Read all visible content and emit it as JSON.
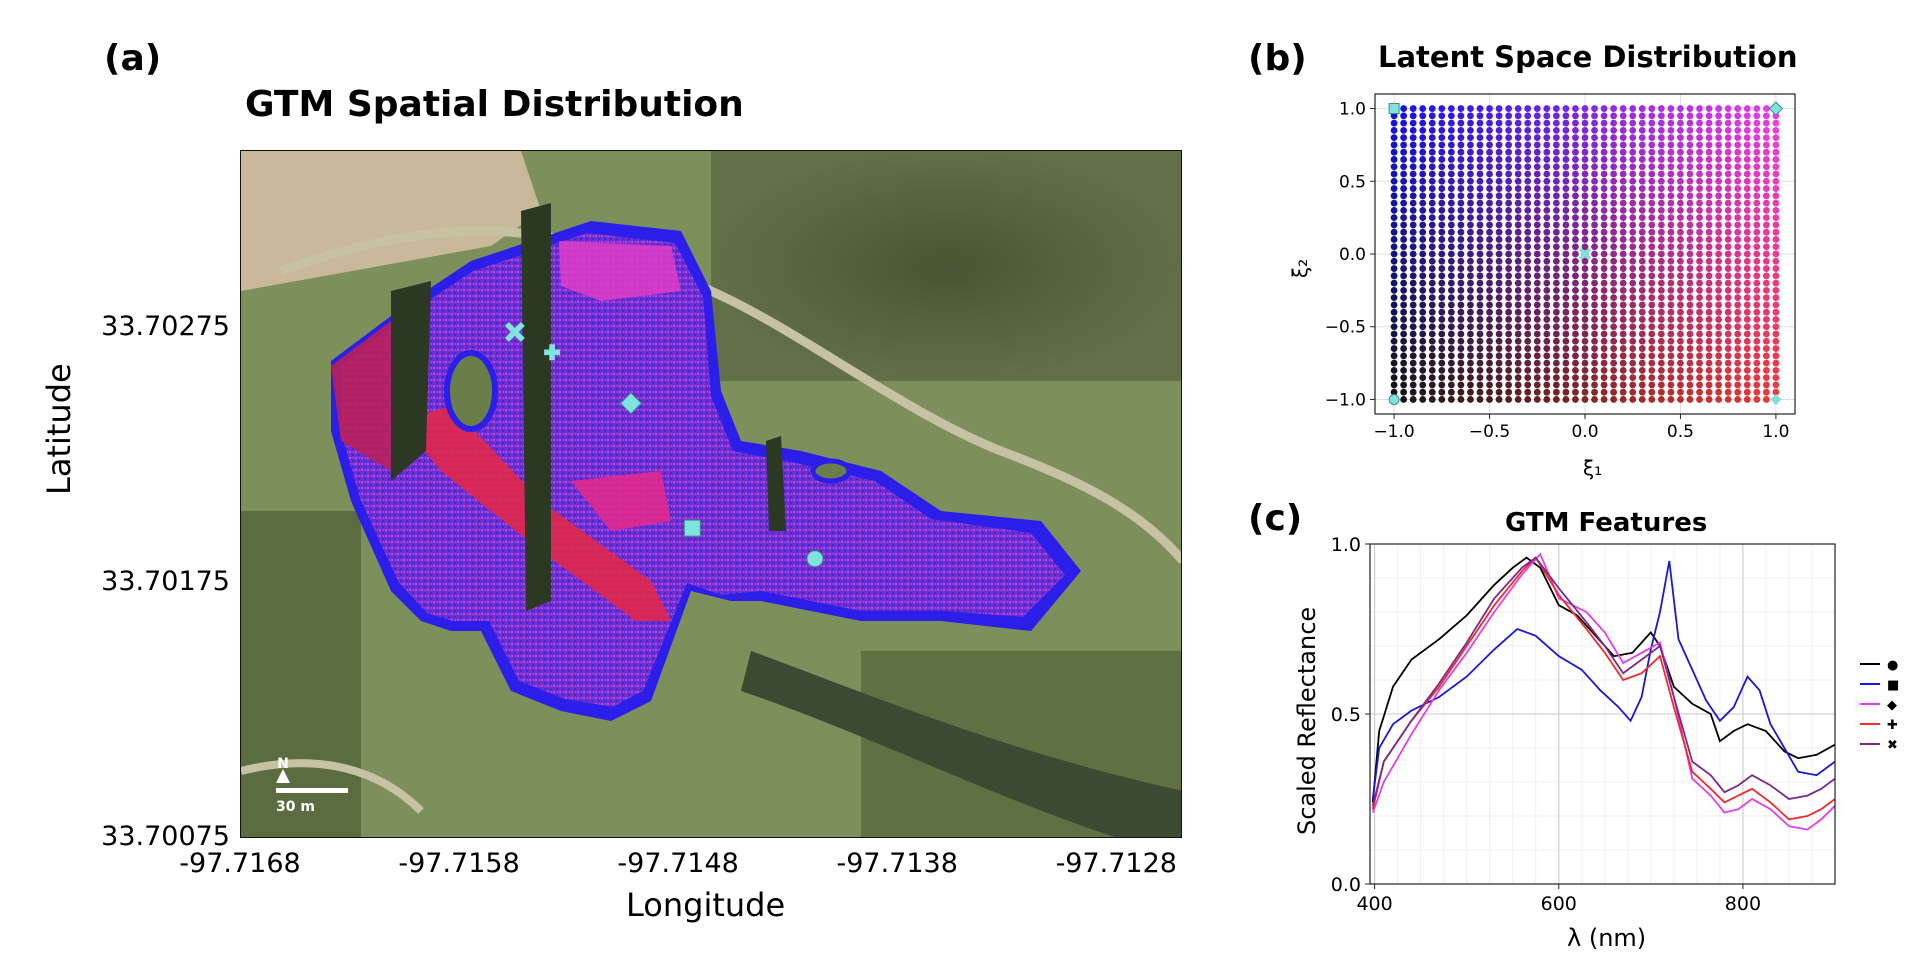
{
  "panel_a": {
    "label": "(a)",
    "title": "GTM Spatial Distribution",
    "xlabel": "Longitude",
    "ylabel": "Latitude",
    "xticks": [
      "-97.7168",
      "-97.7158",
      "-97.7148",
      "-97.7138",
      "-97.7128"
    ],
    "yticks": [
      "33.70275",
      "33.70175",
      "33.70075"
    ],
    "scalebar": {
      "north": "N",
      "label": "30 m"
    },
    "marker_color": "#7fe3de"
  },
  "panel_b": {
    "label": "(b)",
    "title": "Latent Space Distribution",
    "xlabel": "ξ₁",
    "ylabel": "ξ₂",
    "xticks": [
      "−1.0",
      "−0.5",
      "0.0",
      "0.5",
      "1.0"
    ],
    "yticks": [
      "1.0",
      "0.5",
      "0.0",
      "−0.5",
      "−1.0"
    ]
  },
  "panel_c": {
    "label": "(c)",
    "title": "GTM Features",
    "xlabel": "λ (nm)",
    "ylabel": "Scaled Reflectance",
    "xticks": [
      "400",
      "600",
      "800"
    ],
    "yticks": [
      "1.0",
      "0.5",
      "0.0"
    ]
  },
  "chart_data": [
    {
      "id": "a",
      "type": "heatmap",
      "title": "GTM Spatial Distribution",
      "xlabel": "Longitude",
      "ylabel": "Latitude",
      "xlim": [
        -97.7168,
        -97.7125
      ],
      "ylim": [
        33.70075,
        33.70345
      ],
      "markers": [
        {
          "symbol": "x",
          "lon": -97.71555,
          "lat": 33.70274
        },
        {
          "symbol": "plus",
          "lon": -97.71538,
          "lat": 33.70266
        },
        {
          "symbol": "diamond",
          "lon": -97.71502,
          "lat": 33.70246
        },
        {
          "symbol": "square",
          "lon": -97.71474,
          "lat": 33.70197
        },
        {
          "symbol": "circle",
          "lon": -97.71418,
          "lat": 33.70185
        }
      ]
    },
    {
      "id": "b",
      "type": "scatter",
      "title": "Latent Space Distribution",
      "xlabel": "ξ₁",
      "ylabel": "ξ₂",
      "xlim": [
        -1.1,
        1.1
      ],
      "ylim": [
        -1.1,
        1.1
      ],
      "grid": true,
      "point_grid": {
        "min": -1.0,
        "max": 1.0,
        "step": 0.05
      },
      "corner_colors": {
        "bottom_left": "#141414",
        "bottom_right": "#ef3838",
        "top_left": "#1212e8",
        "top_right": "#ee3ce6"
      },
      "markers": [
        {
          "symbol": "square",
          "x": -1.0,
          "y": 1.0
        },
        {
          "symbol": "diamond",
          "x": 1.0,
          "y": 1.0
        },
        {
          "symbol": "x",
          "x": 0.0,
          "y": 0.0
        },
        {
          "symbol": "circle",
          "x": -1.0,
          "y": -1.0
        },
        {
          "symbol": "plus",
          "x": 1.0,
          "y": -1.0
        }
      ]
    },
    {
      "id": "c",
      "type": "line",
      "title": "GTM Features",
      "xlabel": "λ (nm)",
      "ylabel": "Scaled Reflectance",
      "xlim": [
        395,
        900
      ],
      "ylim": [
        0.0,
        1.0
      ],
      "grid": true,
      "legend_position": "right",
      "series": [
        {
          "marker": "●",
          "color": "#000000",
          "points": [
            [
              398,
              0.24
            ],
            [
              405,
              0.45
            ],
            [
              420,
              0.58
            ],
            [
              440,
              0.66
            ],
            [
              470,
              0.72
            ],
            [
              500,
              0.79
            ],
            [
              530,
              0.88
            ],
            [
              550,
              0.93
            ],
            [
              565,
              0.96
            ],
            [
              580,
              0.93
            ],
            [
              600,
              0.82
            ],
            [
              620,
              0.79
            ],
            [
              640,
              0.73
            ],
            [
              660,
              0.67
            ],
            [
              680,
              0.68
            ],
            [
              700,
              0.74
            ],
            [
              710,
              0.7
            ],
            [
              725,
              0.58
            ],
            [
              745,
              0.53
            ],
            [
              765,
              0.5
            ],
            [
              775,
              0.42
            ],
            [
              790,
              0.45
            ],
            [
              805,
              0.47
            ],
            [
              825,
              0.45
            ],
            [
              845,
              0.39
            ],
            [
              860,
              0.37
            ],
            [
              880,
              0.38
            ],
            [
              900,
              0.41
            ]
          ]
        },
        {
          "marker": "■",
          "color": "#1818d8",
          "points": [
            [
              398,
              0.25
            ],
            [
              405,
              0.4
            ],
            [
              420,
              0.47
            ],
            [
              440,
              0.51
            ],
            [
              470,
              0.55
            ],
            [
              500,
              0.61
            ],
            [
              530,
              0.69
            ],
            [
              555,
              0.75
            ],
            [
              575,
              0.73
            ],
            [
              600,
              0.67
            ],
            [
              625,
              0.63
            ],
            [
              645,
              0.57
            ],
            [
              665,
              0.52
            ],
            [
              678,
              0.48
            ],
            [
              690,
              0.55
            ],
            [
              700,
              0.69
            ],
            [
              710,
              0.8
            ],
            [
              720,
              0.95
            ],
            [
              730,
              0.72
            ],
            [
              745,
              0.63
            ],
            [
              760,
              0.54
            ],
            [
              775,
              0.48
            ],
            [
              790,
              0.52
            ],
            [
              805,
              0.61
            ],
            [
              818,
              0.57
            ],
            [
              830,
              0.47
            ],
            [
              845,
              0.4
            ],
            [
              860,
              0.33
            ],
            [
              880,
              0.32
            ],
            [
              900,
              0.36
            ]
          ]
        },
        {
          "marker": "◆",
          "color": "#e23ee6",
          "points": [
            [
              398,
              0.21
            ],
            [
              410,
              0.3
            ],
            [
              440,
              0.44
            ],
            [
              470,
              0.57
            ],
            [
              500,
              0.68
            ],
            [
              530,
              0.8
            ],
            [
              560,
              0.91
            ],
            [
              580,
              0.97
            ],
            [
              600,
              0.84
            ],
            [
              630,
              0.8
            ],
            [
              650,
              0.74
            ],
            [
              670,
              0.65
            ],
            [
              690,
              0.68
            ],
            [
              710,
              0.71
            ],
            [
              725,
              0.55
            ],
            [
              745,
              0.31
            ],
            [
              765,
              0.26
            ],
            [
              780,
              0.21
            ],
            [
              795,
              0.22
            ],
            [
              810,
              0.25
            ],
            [
              830,
              0.22
            ],
            [
              850,
              0.17
            ],
            [
              870,
              0.16
            ],
            [
              885,
              0.19
            ],
            [
              900,
              0.23
            ]
          ]
        },
        {
          "marker": "✚",
          "color": "#ef2b2b",
          "points": [
            [
              398,
              0.22
            ],
            [
              410,
              0.36
            ],
            [
              440,
              0.48
            ],
            [
              470,
              0.58
            ],
            [
              500,
              0.7
            ],
            [
              530,
              0.82
            ],
            [
              560,
              0.92
            ],
            [
              575,
              0.96
            ],
            [
              600,
              0.85
            ],
            [
              630,
              0.75
            ],
            [
              650,
              0.68
            ],
            [
              670,
              0.6
            ],
            [
              690,
              0.62
            ],
            [
              710,
              0.67
            ],
            [
              725,
              0.52
            ],
            [
              745,
              0.33
            ],
            [
              765,
              0.28
            ],
            [
              780,
              0.24
            ],
            [
              795,
              0.26
            ],
            [
              810,
              0.28
            ],
            [
              830,
              0.24
            ],
            [
              850,
              0.19
            ],
            [
              870,
              0.2
            ],
            [
              885,
              0.22
            ],
            [
              900,
              0.25
            ]
          ]
        },
        {
          "marker": "✖",
          "color": "#7a2a8a",
          "points": [
            [
              398,
              0.23
            ],
            [
              410,
              0.36
            ],
            [
              440,
              0.48
            ],
            [
              470,
              0.59
            ],
            [
              500,
              0.71
            ],
            [
              530,
              0.84
            ],
            [
              560,
              0.93
            ],
            [
              575,
              0.96
            ],
            [
              600,
              0.87
            ],
            [
              630,
              0.77
            ],
            [
              650,
              0.7
            ],
            [
              670,
              0.62
            ],
            [
              690,
              0.66
            ],
            [
              710,
              0.7
            ],
            [
              725,
              0.55
            ],
            [
              745,
              0.36
            ],
            [
              765,
              0.32
            ],
            [
              780,
              0.27
            ],
            [
              795,
              0.29
            ],
            [
              810,
              0.32
            ],
            [
              830,
              0.29
            ],
            [
              850,
              0.25
            ],
            [
              870,
              0.26
            ],
            [
              885,
              0.28
            ],
            [
              900,
              0.31
            ]
          ]
        }
      ]
    }
  ]
}
